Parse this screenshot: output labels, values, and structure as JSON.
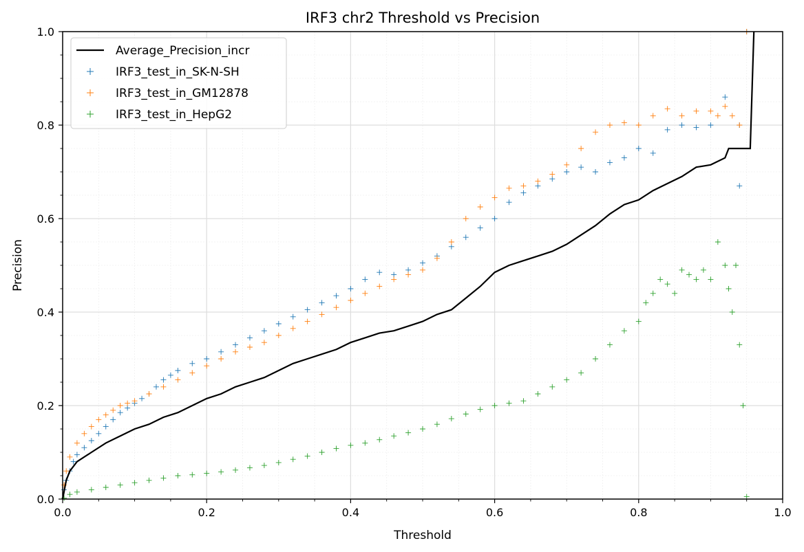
{
  "chart_data": {
    "type": "scatter",
    "title": "IRF3 chr2 Threshold vs Precision",
    "xlabel": "Threshold",
    "ylabel": "Precision",
    "xlim": [
      0.0,
      1.0
    ],
    "ylim": [
      0.0,
      1.0
    ],
    "xticks": [
      "0.0",
      "0.2",
      "0.4",
      "0.6",
      "0.8",
      "1.0"
    ],
    "yticks": [
      "0.0",
      "0.2",
      "0.4",
      "0.6",
      "0.8",
      "1.0"
    ],
    "grid": true,
    "legend_position": "top-left",
    "series": [
      {
        "name": "Average_Precision_incr",
        "kind": "line",
        "color": "#000000",
        "points": [
          [
            0.0,
            0.0
          ],
          [
            0.005,
            0.04
          ],
          [
            0.01,
            0.06
          ],
          [
            0.02,
            0.08
          ],
          [
            0.04,
            0.1
          ],
          [
            0.06,
            0.12
          ],
          [
            0.08,
            0.135
          ],
          [
            0.1,
            0.15
          ],
          [
            0.12,
            0.16
          ],
          [
            0.14,
            0.175
          ],
          [
            0.16,
            0.185
          ],
          [
            0.18,
            0.2
          ],
          [
            0.2,
            0.215
          ],
          [
            0.22,
            0.225
          ],
          [
            0.24,
            0.24
          ],
          [
            0.26,
            0.25
          ],
          [
            0.28,
            0.26
          ],
          [
            0.3,
            0.275
          ],
          [
            0.32,
            0.29
          ],
          [
            0.34,
            0.3
          ],
          [
            0.36,
            0.31
          ],
          [
            0.38,
            0.32
          ],
          [
            0.4,
            0.335
          ],
          [
            0.42,
            0.345
          ],
          [
            0.44,
            0.355
          ],
          [
            0.46,
            0.36
          ],
          [
            0.48,
            0.37
          ],
          [
            0.5,
            0.38
          ],
          [
            0.52,
            0.395
          ],
          [
            0.54,
            0.405
          ],
          [
            0.56,
            0.43
          ],
          [
            0.58,
            0.455
          ],
          [
            0.6,
            0.485
          ],
          [
            0.62,
            0.5
          ],
          [
            0.64,
            0.51
          ],
          [
            0.66,
            0.52
          ],
          [
            0.68,
            0.53
          ],
          [
            0.7,
            0.545
          ],
          [
            0.72,
            0.565
          ],
          [
            0.74,
            0.585
          ],
          [
            0.76,
            0.61
          ],
          [
            0.78,
            0.63
          ],
          [
            0.8,
            0.64
          ],
          [
            0.82,
            0.66
          ],
          [
            0.84,
            0.675
          ],
          [
            0.86,
            0.69
          ],
          [
            0.88,
            0.71
          ],
          [
            0.9,
            0.715
          ],
          [
            0.92,
            0.73
          ],
          [
            0.925,
            0.75
          ],
          [
            0.955,
            0.75
          ],
          [
            0.96,
            1.0
          ]
        ]
      },
      {
        "name": "IRF3_test_in_SK-N-SH",
        "kind": "scatter",
        "marker": "+",
        "color": "#1f77b4",
        "points": [
          [
            0.002,
            0.02
          ],
          [
            0.005,
            0.04
          ],
          [
            0.01,
            0.06
          ],
          [
            0.015,
            0.08
          ],
          [
            0.02,
            0.095
          ],
          [
            0.03,
            0.11
          ],
          [
            0.04,
            0.125
          ],
          [
            0.05,
            0.14
          ],
          [
            0.06,
            0.155
          ],
          [
            0.07,
            0.17
          ],
          [
            0.08,
            0.185
          ],
          [
            0.09,
            0.195
          ],
          [
            0.1,
            0.205
          ],
          [
            0.11,
            0.215
          ],
          [
            0.12,
            0.225
          ],
          [
            0.13,
            0.24
          ],
          [
            0.14,
            0.255
          ],
          [
            0.15,
            0.265
          ],
          [
            0.16,
            0.275
          ],
          [
            0.18,
            0.29
          ],
          [
            0.2,
            0.3
          ],
          [
            0.22,
            0.315
          ],
          [
            0.24,
            0.33
          ],
          [
            0.26,
            0.345
          ],
          [
            0.28,
            0.36
          ],
          [
            0.3,
            0.375
          ],
          [
            0.32,
            0.39
          ],
          [
            0.34,
            0.405
          ],
          [
            0.36,
            0.42
          ],
          [
            0.38,
            0.435
          ],
          [
            0.4,
            0.45
          ],
          [
            0.42,
            0.47
          ],
          [
            0.44,
            0.485
          ],
          [
            0.46,
            0.48
          ],
          [
            0.48,
            0.49
          ],
          [
            0.5,
            0.505
          ],
          [
            0.52,
            0.52
          ],
          [
            0.54,
            0.54
          ],
          [
            0.56,
            0.56
          ],
          [
            0.58,
            0.58
          ],
          [
            0.6,
            0.6
          ],
          [
            0.62,
            0.635
          ],
          [
            0.64,
            0.655
          ],
          [
            0.66,
            0.67
          ],
          [
            0.68,
            0.685
          ],
          [
            0.7,
            0.7
          ],
          [
            0.72,
            0.71
          ],
          [
            0.74,
            0.7
          ],
          [
            0.76,
            0.72
          ],
          [
            0.78,
            0.73
          ],
          [
            0.8,
            0.75
          ],
          [
            0.82,
            0.74
          ],
          [
            0.84,
            0.79
          ],
          [
            0.86,
            0.8
          ],
          [
            0.88,
            0.795
          ],
          [
            0.9,
            0.8
          ],
          [
            0.92,
            0.86
          ],
          [
            0.94,
            0.8
          ],
          [
            0.94,
            0.67
          ],
          [
            0.95,
            1.0
          ]
        ]
      },
      {
        "name": "IRF3_test_in_GM12878",
        "kind": "scatter",
        "marker": "+",
        "color": "#ff7f0e",
        "points": [
          [
            0.002,
            0.03
          ],
          [
            0.005,
            0.06
          ],
          [
            0.01,
            0.09
          ],
          [
            0.02,
            0.12
          ],
          [
            0.03,
            0.14
          ],
          [
            0.04,
            0.155
          ],
          [
            0.05,
            0.17
          ],
          [
            0.06,
            0.18
          ],
          [
            0.07,
            0.19
          ],
          [
            0.08,
            0.2
          ],
          [
            0.09,
            0.205
          ],
          [
            0.1,
            0.21
          ],
          [
            0.12,
            0.225
          ],
          [
            0.14,
            0.24
          ],
          [
            0.16,
            0.255
          ],
          [
            0.18,
            0.27
          ],
          [
            0.2,
            0.285
          ],
          [
            0.22,
            0.3
          ],
          [
            0.24,
            0.315
          ],
          [
            0.26,
            0.325
          ],
          [
            0.28,
            0.335
          ],
          [
            0.3,
            0.35
          ],
          [
            0.32,
            0.365
          ],
          [
            0.34,
            0.38
          ],
          [
            0.36,
            0.395
          ],
          [
            0.38,
            0.41
          ],
          [
            0.4,
            0.425
          ],
          [
            0.42,
            0.44
          ],
          [
            0.44,
            0.455
          ],
          [
            0.46,
            0.47
          ],
          [
            0.48,
            0.48
          ],
          [
            0.5,
            0.49
          ],
          [
            0.52,
            0.515
          ],
          [
            0.54,
            0.55
          ],
          [
            0.56,
            0.6
          ],
          [
            0.58,
            0.625
          ],
          [
            0.6,
            0.645
          ],
          [
            0.62,
            0.665
          ],
          [
            0.64,
            0.67
          ],
          [
            0.66,
            0.68
          ],
          [
            0.68,
            0.695
          ],
          [
            0.7,
            0.715
          ],
          [
            0.72,
            0.75
          ],
          [
            0.74,
            0.785
          ],
          [
            0.76,
            0.8
          ],
          [
            0.78,
            0.805
          ],
          [
            0.8,
            0.8
          ],
          [
            0.82,
            0.82
          ],
          [
            0.84,
            0.835
          ],
          [
            0.86,
            0.82
          ],
          [
            0.88,
            0.83
          ],
          [
            0.9,
            0.83
          ],
          [
            0.91,
            0.82
          ],
          [
            0.92,
            0.84
          ],
          [
            0.93,
            0.82
          ],
          [
            0.94,
            0.8
          ],
          [
            0.95,
            1.0
          ]
        ]
      },
      {
        "name": "IRF3_test_in_HepG2",
        "kind": "scatter",
        "marker": "+",
        "color": "#2ca02c",
        "points": [
          [
            0.002,
            0.002
          ],
          [
            0.01,
            0.01
          ],
          [
            0.02,
            0.015
          ],
          [
            0.04,
            0.02
          ],
          [
            0.06,
            0.025
          ],
          [
            0.08,
            0.03
          ],
          [
            0.1,
            0.035
          ],
          [
            0.12,
            0.04
          ],
          [
            0.14,
            0.045
          ],
          [
            0.16,
            0.05
          ],
          [
            0.18,
            0.052
          ],
          [
            0.2,
            0.055
          ],
          [
            0.22,
            0.058
          ],
          [
            0.24,
            0.062
          ],
          [
            0.26,
            0.067
          ],
          [
            0.28,
            0.072
          ],
          [
            0.3,
            0.078
          ],
          [
            0.32,
            0.085
          ],
          [
            0.34,
            0.092
          ],
          [
            0.36,
            0.1
          ],
          [
            0.38,
            0.108
          ],
          [
            0.4,
            0.115
          ],
          [
            0.42,
            0.12
          ],
          [
            0.44,
            0.127
          ],
          [
            0.46,
            0.135
          ],
          [
            0.48,
            0.142
          ],
          [
            0.5,
            0.15
          ],
          [
            0.52,
            0.16
          ],
          [
            0.54,
            0.172
          ],
          [
            0.56,
            0.182
          ],
          [
            0.58,
            0.192
          ],
          [
            0.6,
            0.2
          ],
          [
            0.62,
            0.205
          ],
          [
            0.64,
            0.21
          ],
          [
            0.66,
            0.225
          ],
          [
            0.68,
            0.24
          ],
          [
            0.7,
            0.255
          ],
          [
            0.72,
            0.27
          ],
          [
            0.74,
            0.3
          ],
          [
            0.76,
            0.33
          ],
          [
            0.78,
            0.36
          ],
          [
            0.8,
            0.38
          ],
          [
            0.81,
            0.42
          ],
          [
            0.82,
            0.44
          ],
          [
            0.83,
            0.47
          ],
          [
            0.84,
            0.46
          ],
          [
            0.85,
            0.44
          ],
          [
            0.86,
            0.49
          ],
          [
            0.87,
            0.48
          ],
          [
            0.88,
            0.47
          ],
          [
            0.89,
            0.49
          ],
          [
            0.9,
            0.47
          ],
          [
            0.91,
            0.55
          ],
          [
            0.92,
            0.5
          ],
          [
            0.925,
            0.45
          ],
          [
            0.93,
            0.4
          ],
          [
            0.935,
            0.5
          ],
          [
            0.94,
            0.33
          ],
          [
            0.945,
            0.2
          ],
          [
            0.95,
            0.005
          ]
        ]
      }
    ]
  }
}
